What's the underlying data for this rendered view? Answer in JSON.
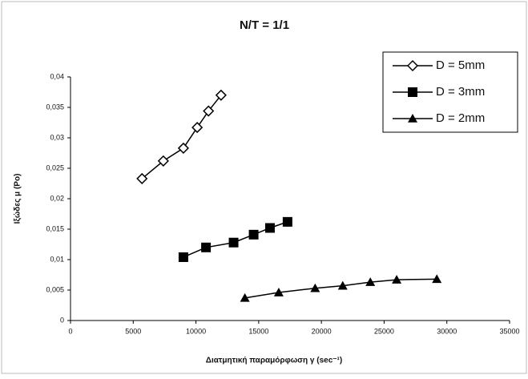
{
  "chart_data": {
    "type": "scatter-line",
    "title": "N/T = 1/1",
    "x_label": "Διατμητική παραμόρφωση γ (sec⁻¹)",
    "y_label": "Ιξώδες μ (Po)",
    "xlim": [
      0,
      35000
    ],
    "xticks": [
      0,
      5000,
      10000,
      15000,
      20000,
      25000,
      30000,
      35000
    ],
    "ylim": [
      0,
      0.04
    ],
    "yticks": [
      0,
      {
        "value": 0.005,
        "label": "0,005"
      },
      {
        "value": 0.01,
        "label": "0,01"
      },
      {
        "value": 0.015,
        "label": "0,015"
      },
      {
        "value": 0.02,
        "label": "0,02"
      },
      {
        "value": 0.025,
        "label": "0,025"
      },
      {
        "value": 0.03,
        "label": "0,03"
      },
      {
        "value": 0.035,
        "label": "0,035"
      },
      {
        "value": 0.04,
        "label": "0,04"
      }
    ],
    "grid": false,
    "legend": "upper-right",
    "series": [
      {
        "name": "D = 5mm",
        "color": "#000000",
        "marker": "diamond-open",
        "x": [
          5700,
          7400,
          9000,
          10100,
          11000,
          12000
        ],
        "values": [
          0.0233,
          0.0262,
          0.0283,
          0.0317,
          0.0344,
          0.037
        ]
      },
      {
        "name": "D = 3mm",
        "color": "#000000",
        "marker": "square",
        "x": [
          9000,
          10800,
          13000,
          14600,
          15900,
          17300
        ],
        "values": [
          0.0104,
          0.012,
          0.0128,
          0.0141,
          0.0152,
          0.0162
        ]
      },
      {
        "name": "D = 2mm",
        "color": "#000000",
        "marker": "triangle",
        "x": [
          13900,
          16600,
          19500,
          21700,
          23900,
          26000,
          29200
        ],
        "values": [
          0.0037,
          0.0046,
          0.0053,
          0.0057,
          0.0063,
          0.0067,
          0.0068
        ]
      }
    ]
  }
}
